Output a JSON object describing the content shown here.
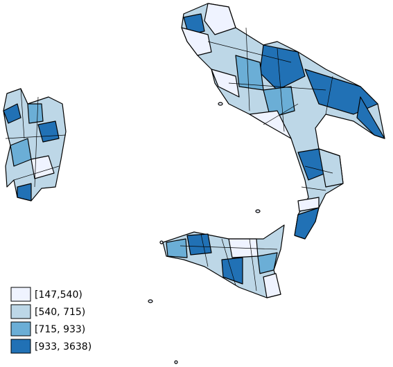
{
  "legend": {
    "items": [
      {
        "label": "[147,540)",
        "color": "#eff3ff"
      },
      {
        "label": "[540, 715)",
        "color": "#bdd7e7"
      },
      {
        "label": "[715, 933)",
        "color": "#6baed6"
      },
      {
        "label": "[933, 3638)",
        "color": "#2171b5"
      }
    ]
  }
}
